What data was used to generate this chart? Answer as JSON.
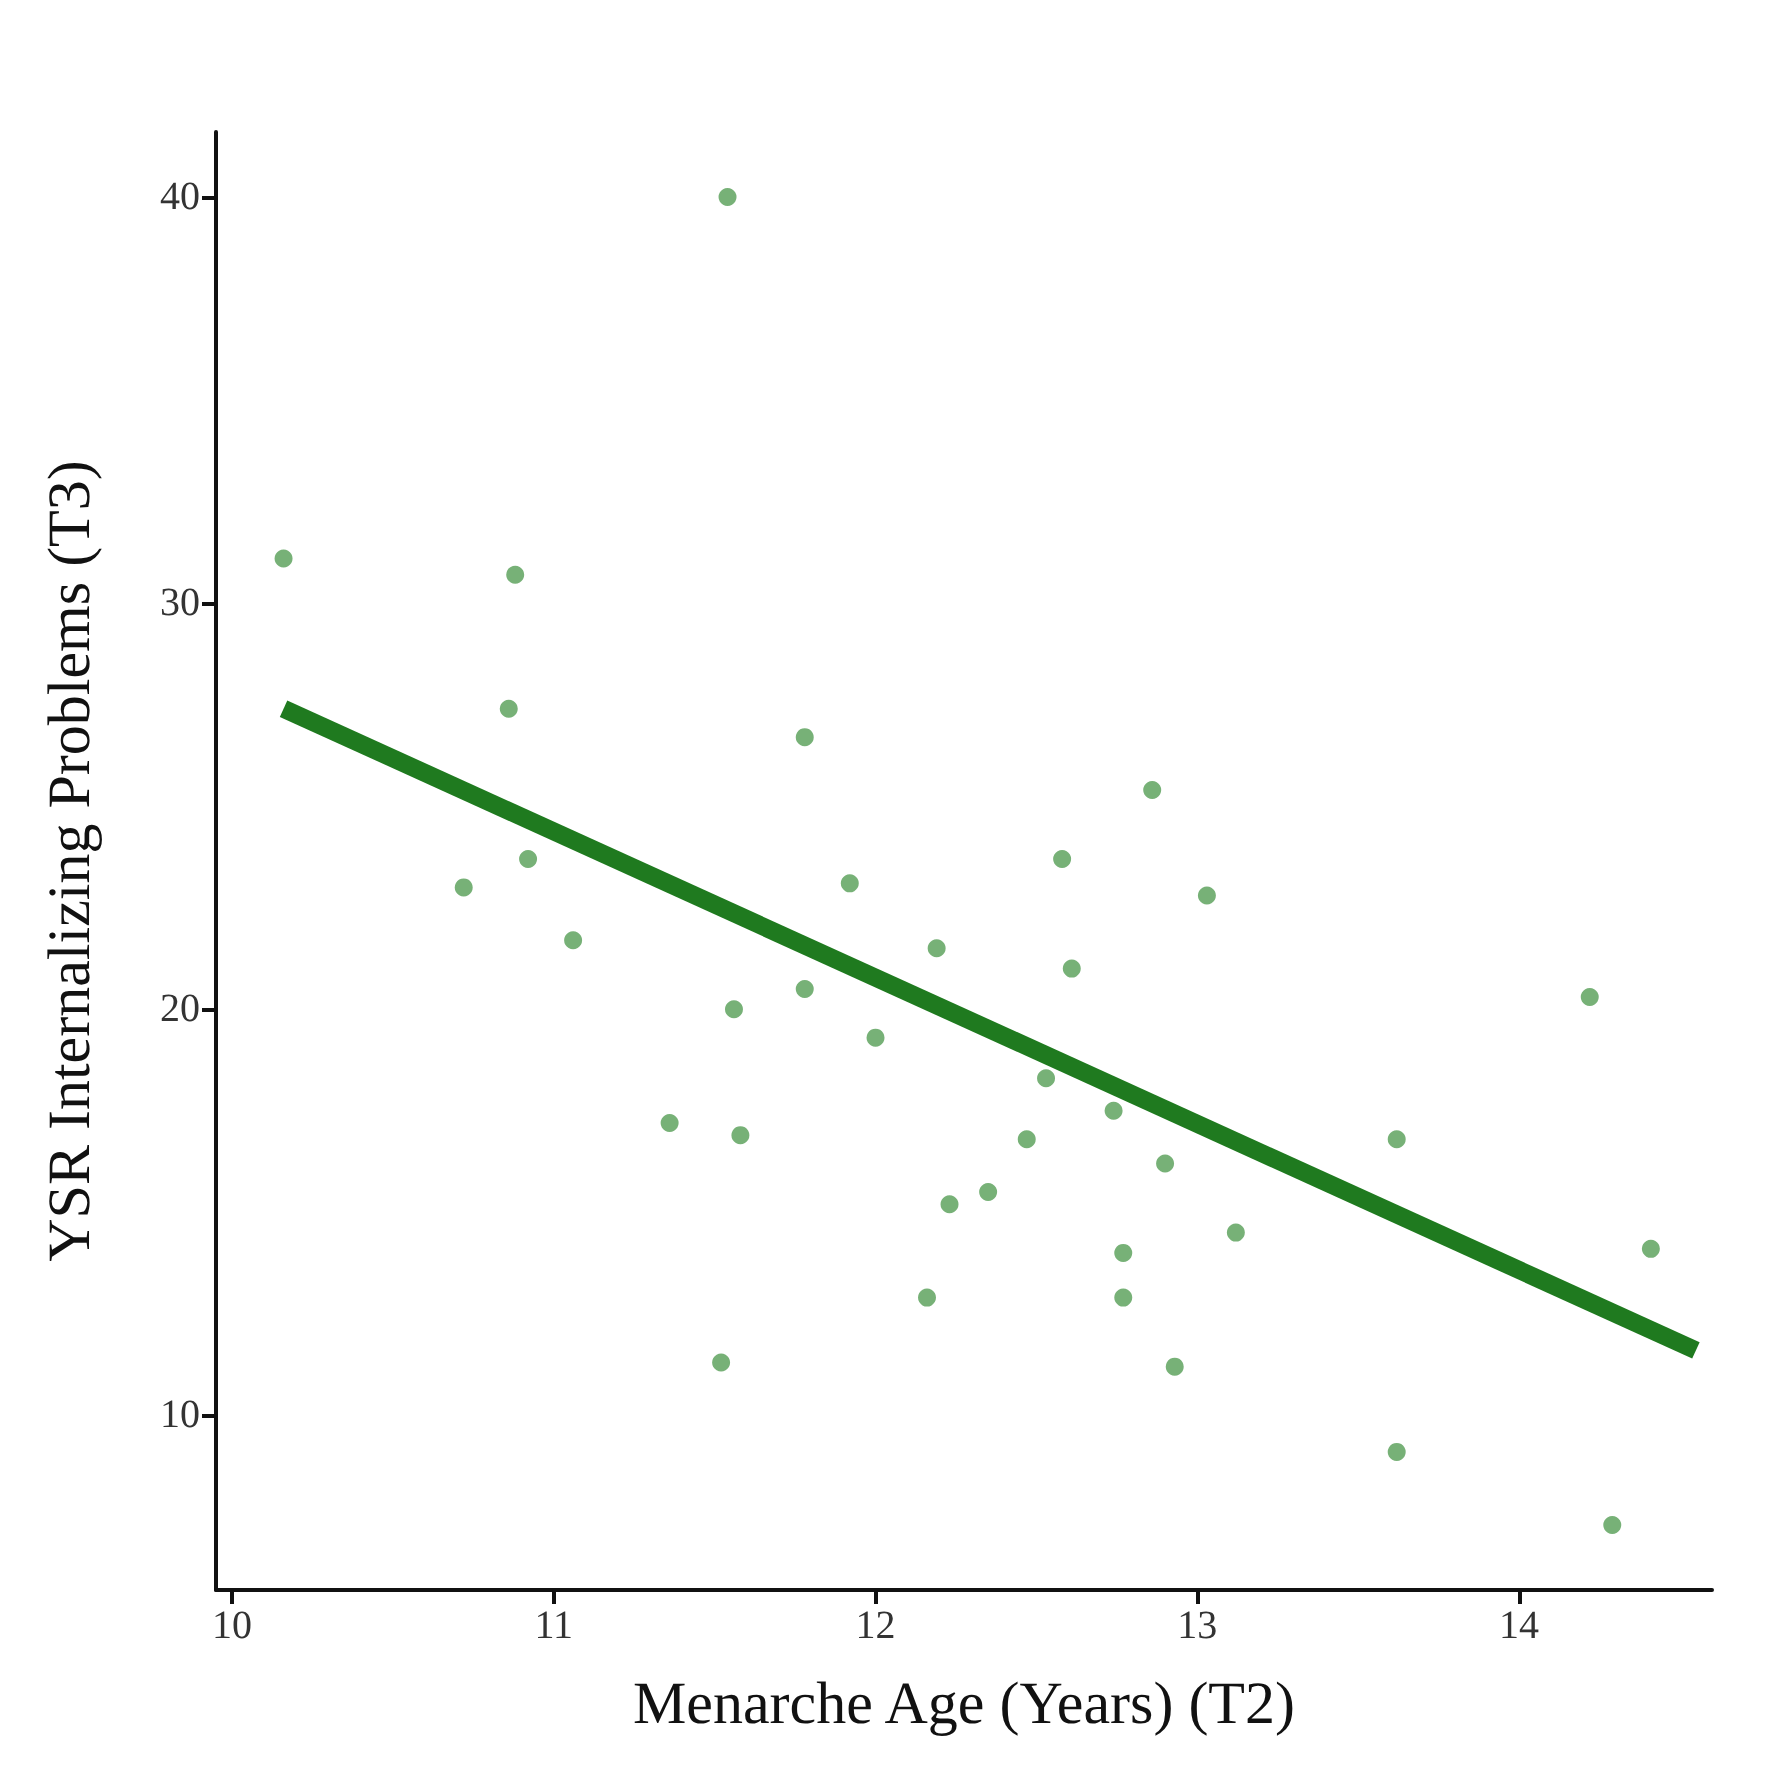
{
  "chart_data": {
    "type": "scatter",
    "xlabel": "Menarche Age (Years) (T2)",
    "ylabel": "YSR Internalizing Problems (T3)",
    "xlim": [
      9.95,
      14.6
    ],
    "ylim": [
      5.7,
      41.6
    ],
    "xticks": [
      10,
      11,
      12,
      13,
      14
    ],
    "yticks": [
      10,
      20,
      30,
      40
    ],
    "grid": false,
    "marker": "circle",
    "series": [
      {
        "type": "scatter",
        "color": "#5fa35f",
        "x": [
          10.16,
          10.88,
          10.86,
          10.72,
          10.92,
          11.06,
          11.54,
          11.36,
          11.56,
          11.58,
          11.52,
          11.78,
          11.78,
          11.92,
          12.0,
          12.19,
          12.16,
          12.23,
          12.35,
          12.47,
          12.53,
          12.58,
          12.61,
          12.74,
          12.86,
          12.77,
          12.77,
          12.9,
          12.93,
          13.03,
          13.12,
          13.62,
          13.62,
          14.22,
          14.29,
          14.41
        ],
        "values": [
          31.1,
          30.7,
          27.4,
          23.0,
          23.7,
          21.7,
          40.0,
          17.2,
          20.0,
          16.9,
          11.3,
          26.7,
          20.5,
          23.1,
          19.3,
          21.5,
          12.9,
          15.2,
          15.5,
          16.8,
          18.3,
          23.7,
          21.0,
          17.5,
          25.4,
          14.0,
          12.9,
          16.2,
          11.2,
          22.8,
          14.5,
          16.8,
          9.1,
          20.3,
          7.3,
          14.1
        ]
      },
      {
        "type": "line",
        "color": "#1f7a1f",
        "x": [
          10.16,
          14.55
        ],
        "values": [
          27.4,
          11.6
        ],
        "marker": "none",
        "line_style": "solid"
      }
    ]
  }
}
